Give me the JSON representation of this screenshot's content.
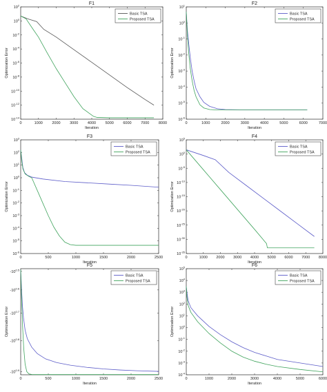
{
  "chart_data": [
    {
      "type": "line",
      "title": "F1",
      "xlabel": "Iteration",
      "ylabel": "Optimization Error",
      "ylog": true,
      "xlim": [
        0,
        8000
      ],
      "ylim_exp": [
        -14,
        2
      ],
      "xticks": [
        "0",
        "1000",
        "2000",
        "3000",
        "4000",
        "5000",
        "6000",
        "7000",
        "8000"
      ],
      "yticks_exp": [
        -14,
        -12,
        -10,
        -8,
        -6,
        -4,
        -2,
        0,
        2
      ],
      "ytick_prefix": "10",
      "legend": {
        "position": "top-right"
      },
      "series": [
        {
          "name": "Basic TSA",
          "color": "#555555",
          "points": [
            [
              0,
              0.7
            ],
            [
              400,
              0.3
            ],
            [
              900,
              -0.1
            ],
            [
              1300,
              -1.2
            ],
            [
              2000,
              -2.3
            ],
            [
              3000,
              -4.1
            ],
            [
              4000,
              -5.9
            ],
            [
              5000,
              -7.7
            ],
            [
              6000,
              -9.5
            ],
            [
              7000,
              -11.2
            ],
            [
              7500,
              -12.0
            ]
          ]
        },
        {
          "name": "Proposed TSA",
          "color": "#3fa35c",
          "points": [
            [
              0,
              0.7
            ],
            [
              300,
              0.3
            ],
            [
              700,
              -1.2
            ],
            [
              1000,
              -2.3
            ],
            [
              1500,
              -4.6
            ],
            [
              2000,
              -6.8
            ],
            [
              2500,
              -8.8
            ],
            [
              3000,
              -10.8
            ],
            [
              3500,
              -12.5
            ],
            [
              4100,
              -13.6
            ],
            [
              4300,
              -13.75
            ],
            [
              5000,
              -13.8
            ],
            [
              7500,
              -13.8
            ]
          ]
        }
      ]
    },
    {
      "type": "line",
      "title": "F2",
      "xlabel": "Iteration",
      "ylabel": "Optimization Error",
      "ylog": true,
      "xlim": [
        0,
        7000
      ],
      "ylim_exp": [
        -6,
        1
      ],
      "xticks": [
        "0",
        "1000",
        "2000",
        "3000",
        "4000",
        "5000",
        "6000",
        "7000"
      ],
      "yticks_exp": [
        -6,
        -5,
        -4,
        -3,
        -2,
        -1,
        0,
        1
      ],
      "ytick_prefix": "10",
      "legend": {
        "position": "top-right"
      },
      "series": [
        {
          "name": "Basic TSA",
          "color": "#5b5bc8",
          "points": [
            [
              0,
              0.7
            ],
            [
              60,
              -0.5
            ],
            [
              120,
              -1.2
            ],
            [
              200,
              -2.1
            ],
            [
              300,
              -3.0
            ],
            [
              400,
              -3.6
            ],
            [
              500,
              -4.1
            ],
            [
              700,
              -4.6
            ],
            [
              900,
              -4.95
            ],
            [
              1200,
              -5.2
            ],
            [
              1600,
              -5.35
            ],
            [
              2000,
              -5.4
            ],
            [
              3000,
              -5.42
            ],
            [
              6200,
              -5.42
            ]
          ]
        },
        {
          "name": "Proposed TSA",
          "color": "#3fa35c",
          "points": [
            [
              0,
              0.7
            ],
            [
              60,
              -0.8
            ],
            [
              120,
              -1.8
            ],
            [
              200,
              -2.8
            ],
            [
              300,
              -3.6
            ],
            [
              400,
              -4.2
            ],
            [
              500,
              -4.6
            ],
            [
              700,
              -5.1
            ],
            [
              900,
              -5.3
            ],
            [
              1200,
              -5.4
            ],
            [
              1500,
              -5.42
            ],
            [
              6200,
              -5.42
            ]
          ]
        }
      ]
    },
    {
      "type": "line",
      "title": "F3",
      "xlabel": "Iteration",
      "ylabel": "Optimization Error",
      "ylog": true,
      "xlim": [
        0,
        2500
      ],
      "ylim_exp": [
        -6,
        3
      ],
      "xticks": [
        "0",
        "500",
        "1000",
        "1500",
        "2000",
        "2500"
      ],
      "yticks_exp": [
        -6,
        -5,
        -4,
        -3,
        -2,
        -1,
        0,
        1,
        2,
        3
      ],
      "ytick_prefix": "10",
      "legend": {
        "position": "top-right"
      },
      "series": [
        {
          "name": "Basic TSA",
          "color": "#5b5bc8",
          "points": [
            [
              0,
              2.2
            ],
            [
              20,
              1.5
            ],
            [
              40,
              0.8
            ],
            [
              70,
              0.4
            ],
            [
              120,
              0.2
            ],
            [
              200,
              0.05
            ],
            [
              400,
              -0.1
            ],
            [
              800,
              -0.3
            ],
            [
              1200,
              -0.4
            ],
            [
              1600,
              -0.5
            ],
            [
              2000,
              -0.6
            ],
            [
              2500,
              -0.75
            ]
          ]
        },
        {
          "name": "Proposed TSA",
          "color": "#3fa35c",
          "points": [
            [
              0,
              2.2
            ],
            [
              20,
              1.3
            ],
            [
              40,
              0.7
            ],
            [
              80,
              0.3
            ],
            [
              150,
              0.1
            ],
            [
              200,
              0.0
            ],
            [
              300,
              -1.0
            ],
            [
              400,
              -2.0
            ],
            [
              500,
              -3.0
            ],
            [
              600,
              -3.9
            ],
            [
              700,
              -4.6
            ],
            [
              800,
              -5.1
            ],
            [
              900,
              -5.3
            ],
            [
              1000,
              -5.35
            ],
            [
              2500,
              -5.35
            ]
          ]
        }
      ]
    },
    {
      "type": "line",
      "title": "F4",
      "xlabel": "Iteration",
      "ylabel": "Optimization Error",
      "ylog": true,
      "xlim": [
        0,
        8000
      ],
      "ylim_exp": [
        -35,
        5
      ],
      "xticks": [
        "0",
        "1000",
        "2000",
        "3000",
        "4000",
        "5000",
        "6000",
        "7000",
        "8000"
      ],
      "yticks_exp": [
        -35,
        -30,
        -25,
        -20,
        -15,
        -10,
        -5,
        0,
        5
      ],
      "ytick_prefix": "10",
      "legend": {
        "position": "top-right"
      },
      "series": [
        {
          "name": "Basic TSA",
          "color": "#5b5bc8",
          "points": [
            [
              0,
              1.5
            ],
            [
              500,
              0.5
            ],
            [
              1000,
              -0.5
            ],
            [
              1700,
              -2.0
            ],
            [
              2500,
              -6.5
            ],
            [
              3500,
              -11.0
            ],
            [
              4500,
              -15.5
            ],
            [
              5500,
              -20.0
            ],
            [
              6500,
              -24.5
            ],
            [
              7500,
              -29.0
            ]
          ]
        },
        {
          "name": "Proposed TSA",
          "color": "#3fa35c",
          "points": [
            [
              0,
              1.5
            ],
            [
              1000,
              -5.5
            ],
            [
              2000,
              -12.5
            ],
            [
              3000,
              -19.5
            ],
            [
              4000,
              -26.5
            ],
            [
              4700,
              -31.5
            ],
            [
              4750,
              -33.0
            ],
            [
              5000,
              -33.0
            ],
            [
              7500,
              -33.0
            ]
          ]
        }
      ]
    },
    {
      "type": "line",
      "title": "F5",
      "xlabel": "Iteration",
      "ylabel": "Optimization Error",
      "ylog": true,
      "negative_values": true,
      "xlim": [
        0,
        2500
      ],
      "ylim": [
        0,
        1
      ],
      "xticks": [
        "0",
        "500",
        "1000",
        "1500",
        "2000",
        "2500"
      ],
      "yticks": [
        {
          "label": "-10",
          "exp": "0.5",
          "v": 0.975
        },
        {
          "label": "-10",
          "exp": "0.6",
          "v": 0.8
        },
        {
          "label": "-10",
          "exp": "0.7",
          "v": 0.58
        },
        {
          "label": "-10",
          "exp": "0.8",
          "v": 0.32
        },
        {
          "label": "-10",
          "exp": "0.9",
          "v": 0.03
        }
      ],
      "legend": {
        "position": "top-right"
      },
      "series": [
        {
          "name": "Basic TSA",
          "color": "#5b5bc8",
          "points": [
            [
              0,
              0.99
            ],
            [
              8,
              0.9
            ],
            [
              18,
              0.78
            ],
            [
              30,
              0.66
            ],
            [
              50,
              0.54
            ],
            [
              80,
              0.42
            ],
            [
              120,
              0.34
            ],
            [
              200,
              0.26
            ],
            [
              300,
              0.2
            ],
            [
              450,
              0.15
            ],
            [
              650,
              0.115
            ],
            [
              900,
              0.09
            ],
            [
              1200,
              0.07
            ],
            [
              1500,
              0.055
            ],
            [
              1800,
              0.045
            ],
            [
              2100,
              0.038
            ],
            [
              2500,
              0.032
            ]
          ]
        },
        {
          "name": "Proposed TSA",
          "color": "#3fa35c",
          "points": [
            [
              0,
              0.99
            ],
            [
              8,
              0.85
            ],
            [
              20,
              0.66
            ],
            [
              35,
              0.45
            ],
            [
              55,
              0.25
            ],
            [
              80,
              0.1
            ],
            [
              110,
              0.03
            ],
            [
              150,
              0.008
            ],
            [
              200,
              0.003
            ],
            [
              300,
              0.002
            ],
            [
              2500,
              0.002
            ]
          ]
        }
      ]
    },
    {
      "type": "line",
      "title": "F6",
      "xlabel": "Iteration",
      "ylabel": "Optimization Error",
      "ylog": true,
      "xlim": [
        0,
        6000
      ],
      "ylim_exp": [
        -4,
        5
      ],
      "xticks": [
        "0",
        "1000",
        "2000",
        "3000",
        "4000",
        "5000",
        "6000"
      ],
      "yticks_exp": [
        -4,
        -3,
        -2,
        -1,
        0,
        1,
        2,
        3,
        4,
        5
      ],
      "ytick_prefix": "10",
      "legend": {
        "position": "top-right"
      },
      "series": [
        {
          "name": "Basic TSA",
          "color": "#5b5bc8",
          "points": [
            [
              0,
              3.5
            ],
            [
              30,
              3.0
            ],
            [
              80,
              2.3
            ],
            [
              200,
              1.7
            ],
            [
              500,
              1.0
            ],
            [
              1000,
              0.1
            ],
            [
              1500,
              -0.6
            ],
            [
              2000,
              -1.2
            ],
            [
              2500,
              -1.7
            ],
            [
              3000,
              -2.1
            ],
            [
              3500,
              -2.4
            ],
            [
              4000,
              -2.7
            ],
            [
              5000,
              -3.0
            ],
            [
              6000,
              -3.3
            ]
          ]
        },
        {
          "name": "Proposed TSA",
          "color": "#3fa35c",
          "points": [
            [
              0,
              3.5
            ],
            [
              30,
              2.6
            ],
            [
              80,
              1.9
            ],
            [
              200,
              1.3
            ],
            [
              500,
              0.5
            ],
            [
              1000,
              -0.5
            ],
            [
              1500,
              -1.3
            ],
            [
              2000,
              -2.0
            ],
            [
              2500,
              -2.5
            ],
            [
              3000,
              -2.85
            ],
            [
              3500,
              -3.1
            ],
            [
              4000,
              -3.3
            ],
            [
              5000,
              -3.55
            ],
            [
              6000,
              -3.75
            ]
          ]
        }
      ]
    }
  ]
}
